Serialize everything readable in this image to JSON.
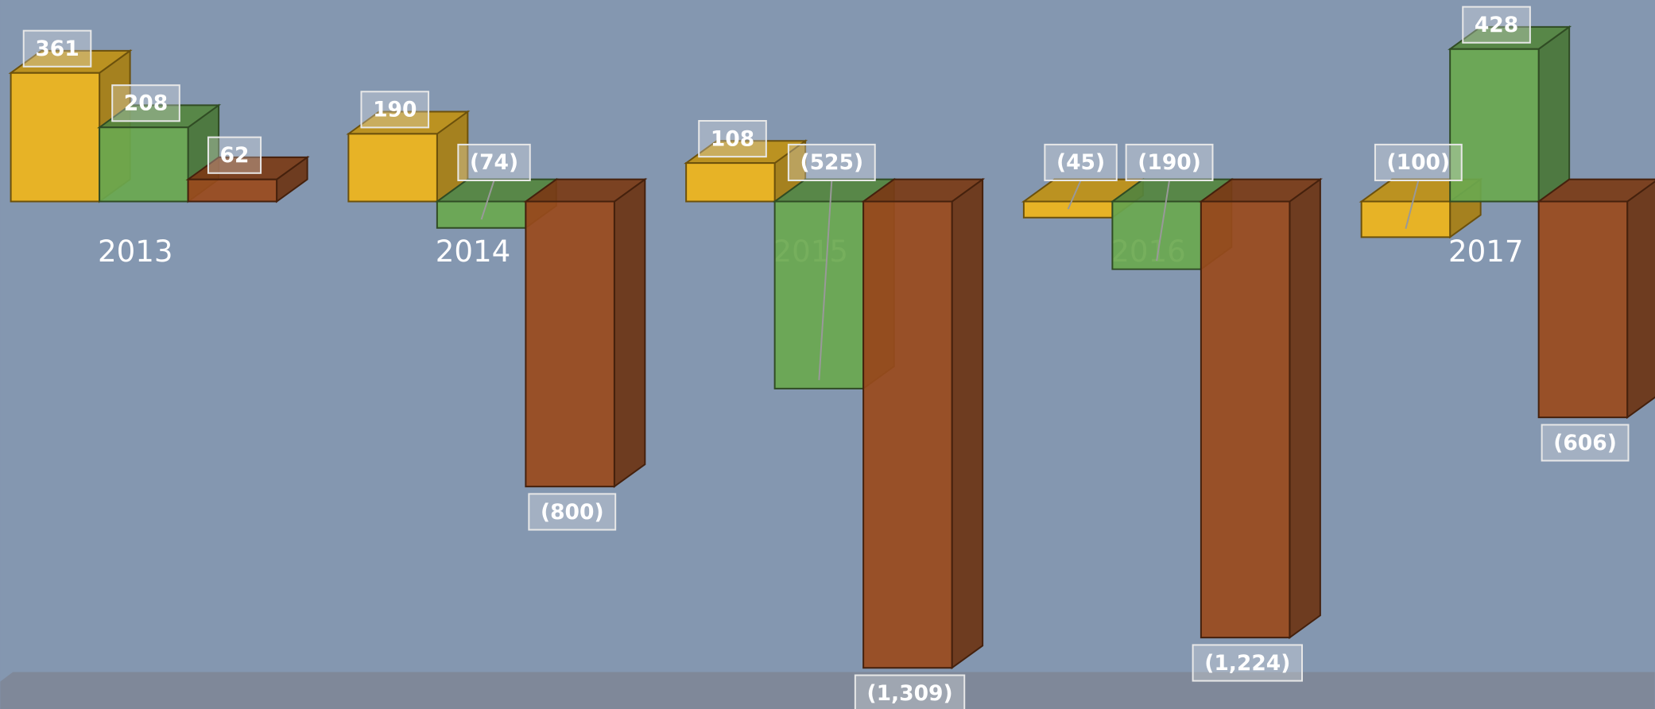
{
  "chart_data": {
    "type": "bar3d",
    "categories": [
      "2013",
      "2014",
      "2015",
      "2016",
      "2017"
    ],
    "series": [
      {
        "color": "#f0b51a",
        "values": [
          361,
          190,
          108,
          -45,
          -100
        ],
        "value_labels": [
          "361",
          "190",
          "108",
          "(45)",
          "(100)"
        ]
      },
      {
        "color": "#6aa84f",
        "values": [
          208,
          -74,
          -525,
          -190,
          428
        ],
        "value_labels": [
          "208",
          "(74)",
          "(525)",
          "(190)",
          "428"
        ]
      },
      {
        "color": "#9a4a1c",
        "values": [
          62,
          -800,
          -1309,
          -1224,
          -606
        ],
        "value_labels": [
          "62",
          "(800)",
          "(1,309)",
          "(1,224)",
          "(606)"
        ]
      }
    ]
  }
}
